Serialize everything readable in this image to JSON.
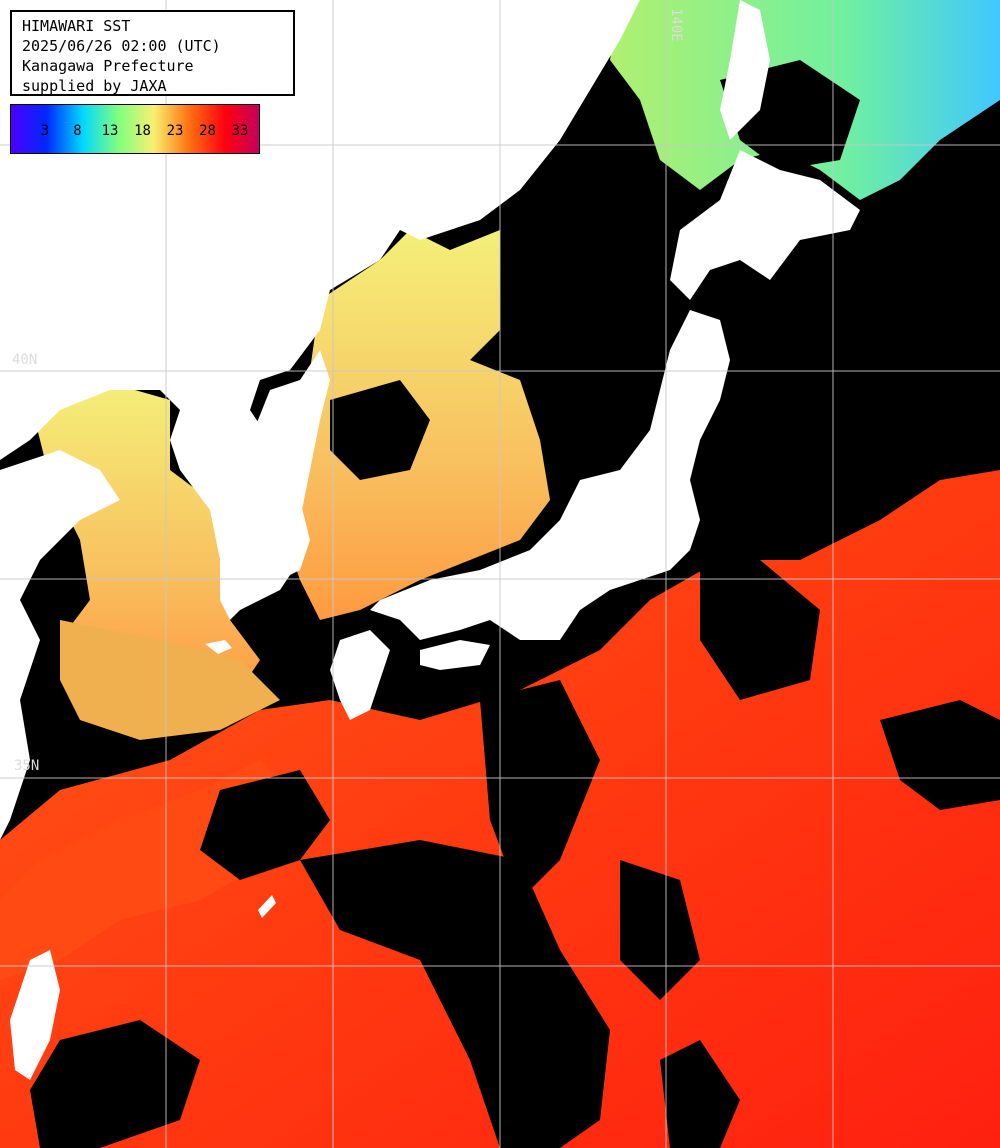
{
  "header": {
    "lines": [
      "HIMAWARI SST",
      "2025/06/26 02:00 (UTC)",
      "Kanagawa Prefecture",
      "supplied by JAXA"
    ]
  },
  "legend": {
    "ticks": [
      "3",
      "8",
      "13",
      "18",
      "23",
      "28",
      "33"
    ],
    "colors": [
      "#4b00ff",
      "#0028ff",
      "#00d8ff",
      "#80ff80",
      "#f8f070",
      "#ff7010",
      "#ff0010",
      "#c00060"
    ]
  },
  "grid": {
    "labels": {
      "lat_40": "40N",
      "lat_35": "35N",
      "lon_140": "140E"
    }
  },
  "colors": {
    "land": "#ffffff",
    "cloud": "#000000",
    "grid": "#c8c8c8",
    "sst_warm": "#ff4010",
    "sst_mild": "#f8d868",
    "sst_cool": "#80f0a0"
  }
}
